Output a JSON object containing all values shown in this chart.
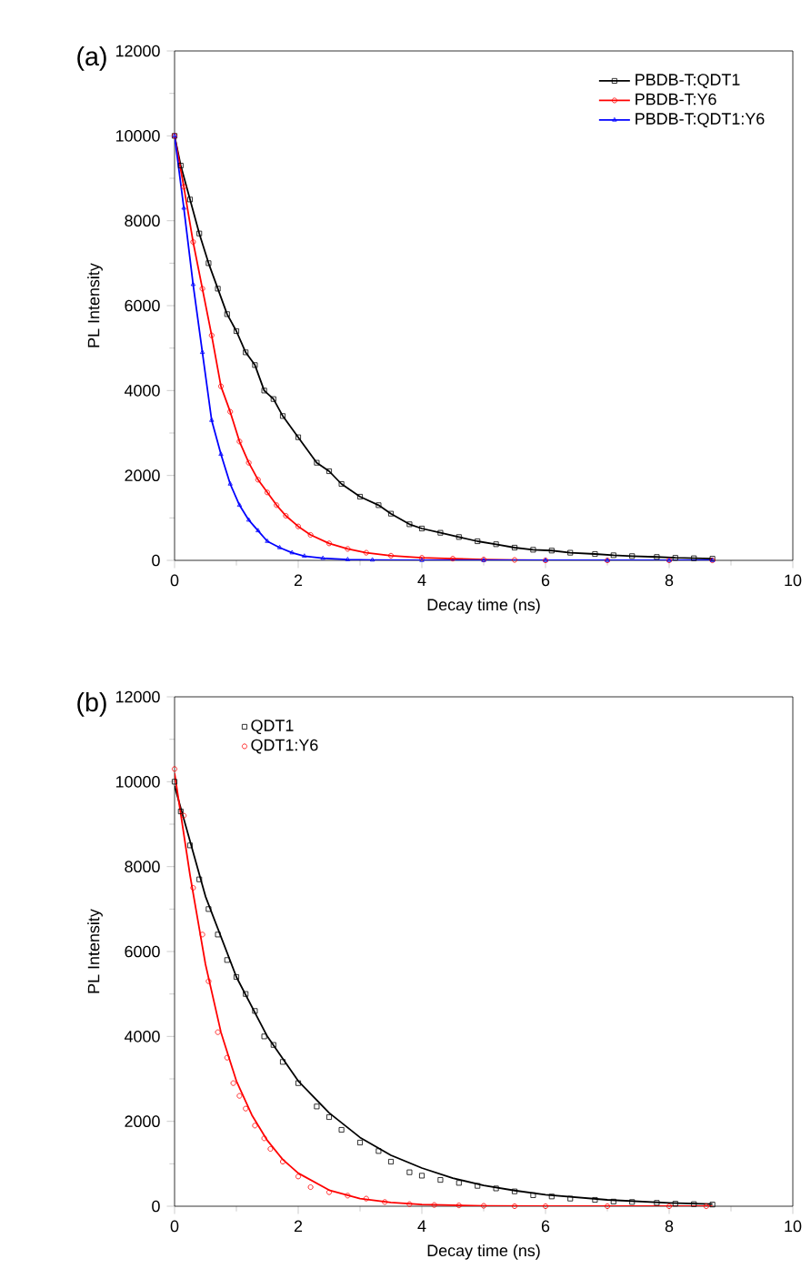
{
  "chart_data": [
    {
      "type": "line",
      "title": "(a)",
      "xlabel": "Decay time (ns)",
      "ylabel": "PL Intensity",
      "xlim": [
        0,
        10
      ],
      "xticks": [
        0,
        2,
        4,
        6,
        8,
        10
      ],
      "ylim": [
        0,
        12000
      ],
      "yticks": [
        0,
        2000,
        4000,
        6000,
        8000,
        10000,
        12000
      ],
      "legend": "top right",
      "grid": false,
      "line_style": "solid",
      "series": [
        {
          "name": "PBDB-T:QDT1",
          "color": "#000000",
          "marker": "square",
          "x": [
            0,
            0.1,
            0.25,
            0.4,
            0.55,
            0.7,
            0.85,
            1.0,
            1.15,
            1.3,
            1.45,
            1.6,
            1.75,
            2.0,
            2.3,
            2.5,
            2.7,
            3.0,
            3.3,
            3.5,
            3.8,
            4.0,
            4.3,
            4.6,
            4.9,
            5.2,
            5.5,
            5.8,
            6.1,
            6.4,
            6.8,
            7.1,
            7.4,
            7.8,
            8.1,
            8.4,
            8.7
          ],
          "values": [
            10000,
            9300,
            8500,
            7700,
            7000,
            6400,
            5800,
            5400,
            4900,
            4600,
            4000,
            3800,
            3400,
            2900,
            2300,
            2100,
            1800,
            1500,
            1300,
            1100,
            850,
            750,
            650,
            550,
            450,
            380,
            300,
            250,
            230,
            180,
            150,
            120,
            100,
            80,
            60,
            50,
            40
          ]
        },
        {
          "name": "PBDB-T:Y6",
          "color": "#ff0000",
          "marker": "circle",
          "x": [
            0,
            0.15,
            0.3,
            0.45,
            0.6,
            0.75,
            0.9,
            1.05,
            1.2,
            1.35,
            1.5,
            1.65,
            1.8,
            2.0,
            2.2,
            2.5,
            2.8,
            3.1,
            3.5,
            4.0,
            4.5,
            5.0,
            5.5,
            6.0,
            7.0,
            8.0,
            8.7
          ],
          "values": [
            10000,
            8800,
            7500,
            6400,
            5300,
            4100,
            3500,
            2800,
            2300,
            1900,
            1600,
            1300,
            1050,
            800,
            600,
            400,
            270,
            180,
            110,
            60,
            40,
            20,
            10,
            0,
            0,
            0,
            0
          ]
        },
        {
          "name": "PBDB-T:QDT1:Y6",
          "color": "#0000ff",
          "marker": "triangle",
          "x": [
            0,
            0.15,
            0.3,
            0.45,
            0.6,
            0.75,
            0.9,
            1.05,
            1.2,
            1.35,
            1.5,
            1.7,
            1.9,
            2.1,
            2.4,
            2.8,
            3.2,
            4.0,
            5.0,
            6.0,
            7.0,
            8.0,
            8.7
          ],
          "values": [
            10000,
            8300,
            6500,
            4900,
            3300,
            2500,
            1800,
            1300,
            950,
            700,
            450,
            300,
            180,
            100,
            50,
            20,
            10,
            0,
            0,
            0,
            0,
            0,
            0
          ]
        }
      ]
    },
    {
      "type": "scatter",
      "title": "(b)",
      "xlabel": "Decay time (ns)",
      "ylabel": "PL Intensity",
      "xlim": [
        0,
        10
      ],
      "xticks": [
        0,
        2,
        4,
        6,
        8,
        10
      ],
      "ylim": [
        0,
        12000
      ],
      "yticks": [
        0,
        2000,
        4000,
        6000,
        8000,
        10000,
        12000
      ],
      "legend": "top left",
      "grid": false,
      "series": [
        {
          "name": "QDT1",
          "color": "#000000",
          "marker": "square",
          "x": [
            0,
            0.1,
            0.25,
            0.4,
            0.55,
            0.7,
            0.85,
            1.0,
            1.15,
            1.3,
            1.45,
            1.6,
            1.75,
            2.0,
            2.3,
            2.5,
            2.7,
            3.0,
            3.3,
            3.5,
            3.8,
            4.0,
            4.3,
            4.6,
            4.9,
            5.2,
            5.5,
            5.8,
            6.1,
            6.4,
            6.8,
            7.1,
            7.4,
            7.8,
            8.1,
            8.4,
            8.7
          ],
          "values": [
            10000,
            9300,
            8500,
            7700,
            7000,
            6400,
            5800,
            5400,
            5000,
            4600,
            4000,
            3800,
            3400,
            2900,
            2350,
            2100,
            1800,
            1500,
            1300,
            1050,
            800,
            720,
            620,
            550,
            480,
            420,
            350,
            260,
            230,
            180,
            150,
            110,
            100,
            80,
            60,
            50,
            40
          ]
        },
        {
          "name": "QDT1:Y6",
          "color": "#ff0000",
          "marker": "circle",
          "x": [
            0,
            0.15,
            0.3,
            0.45,
            0.55,
            0.7,
            0.85,
            0.95,
            1.05,
            1.15,
            1.3,
            1.45,
            1.55,
            1.75,
            2.0,
            2.2,
            2.5,
            2.8,
            3.1,
            3.4,
            3.8,
            4.2,
            4.6,
            5.0,
            5.5,
            6.0,
            7.0,
            8.0,
            8.6
          ],
          "values": [
            10300,
            9200,
            7500,
            6400,
            5300,
            4100,
            3500,
            2900,
            2600,
            2300,
            1900,
            1600,
            1350,
            1050,
            700,
            450,
            330,
            250,
            180,
            100,
            50,
            30,
            20,
            10,
            0,
            0,
            0,
            0,
            0
          ]
        },
        {
          "type": "line",
          "color": "#000000",
          "marker": "none",
          "x": [
            0,
            0.5,
            1,
            1.5,
            2,
            2.5,
            3,
            3.5,
            4,
            4.5,
            5,
            5.5,
            6,
            7,
            8,
            8.7
          ],
          "values": [
            9900,
            7300,
            5400,
            4000,
            2950,
            2200,
            1620,
            1200,
            900,
            660,
            490,
            370,
            270,
            150,
            80,
            50
          ]
        },
        {
          "type": "line",
          "color": "#ff0000",
          "marker": "none",
          "x": [
            0,
            0.25,
            0.5,
            0.75,
            1,
            1.25,
            1.5,
            1.75,
            2,
            2.5,
            3,
            3.5,
            4,
            5,
            6,
            7,
            8.7
          ],
          "values": [
            10200,
            7800,
            5700,
            4100,
            2950,
            2150,
            1550,
            1100,
            780,
            380,
            180,
            90,
            40,
            10,
            0,
            0,
            0
          ]
        }
      ]
    }
  ]
}
